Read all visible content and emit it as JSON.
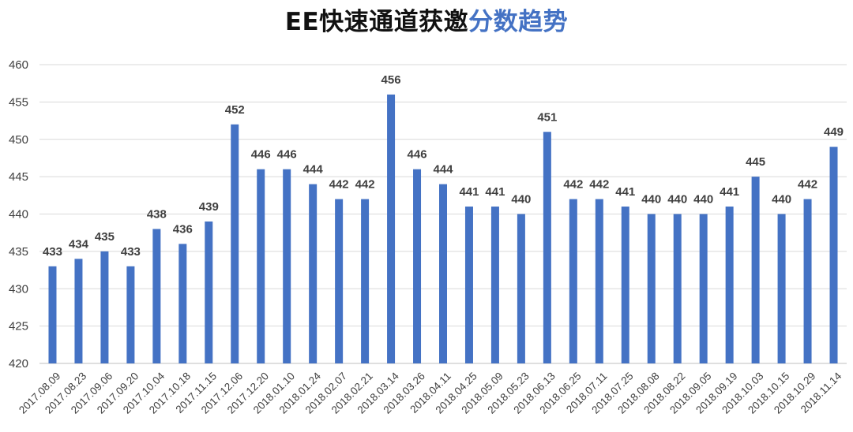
{
  "title": {
    "part1": "EE快速通道获邀",
    "part2": "分数趋势"
  },
  "colors": {
    "bar": "#4472c4",
    "title_accent": "#4472c4",
    "title_main": "#111111",
    "grid": "#d9d9d9",
    "text": "#404040"
  },
  "chart_data": {
    "type": "bar",
    "title": "EE快速通道获邀分数趋势",
    "xlabel": "",
    "ylabel": "",
    "ylim": [
      420,
      460
    ],
    "yticks": [
      420,
      425,
      430,
      435,
      440,
      445,
      450,
      455,
      460
    ],
    "grid": true,
    "legend": "none",
    "data_labels": true,
    "categories": [
      "2017.08.09",
      "2017.08.23",
      "2017.09.06",
      "2017.09.20",
      "2017.10.04",
      "2017.10.18",
      "2017.11.15",
      "2017.12.06",
      "2017.12.20",
      "2018.01.10",
      "2018.01.24",
      "2018.02.07",
      "2018.02.21",
      "2018.03.14",
      "2018.03.26",
      "2018.04.11",
      "2018.04.25",
      "2018.05.09",
      "2018.05.23",
      "2018.06.13",
      "2018.06.25",
      "2018.07.11",
      "2018.07.25",
      "2018.08.08",
      "2018.08.22",
      "2018.09.05",
      "2018.09.19",
      "2018.10.03",
      "2018.10.15",
      "2018.10.29",
      "2018.11.14"
    ],
    "values": [
      433,
      434,
      435,
      433,
      438,
      436,
      439,
      452,
      446,
      446,
      444,
      442,
      442,
      456,
      446,
      444,
      441,
      441,
      440,
      451,
      442,
      442,
      441,
      440,
      440,
      440,
      441,
      445,
      440,
      442,
      449
    ]
  }
}
